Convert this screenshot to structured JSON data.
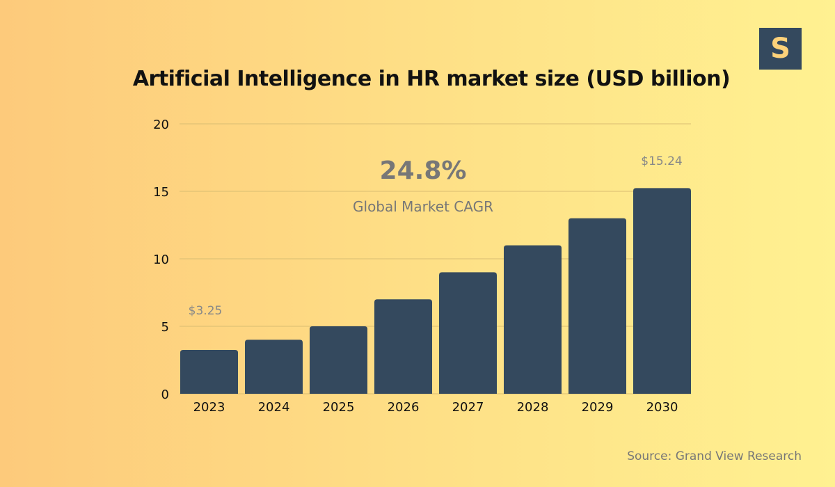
{
  "logo_text": "S",
  "source": "Source: Grand View Research",
  "colors": {
    "bar": "#34495e",
    "grid": "#d9bd72",
    "annotation": "#777777"
  },
  "chart_data": {
    "type": "bar",
    "title": "Artificial Intelligence in HR market size (USD billion)",
    "xlabel": "",
    "ylabel": "",
    "categories": [
      "2023",
      "2024",
      "2025",
      "2026",
      "2027",
      "2028",
      "2029",
      "2030"
    ],
    "values": [
      3.25,
      4.0,
      5.0,
      7.0,
      9.0,
      11.0,
      13.0,
      15.24
    ],
    "ylim": [
      0,
      20
    ],
    "yticks": [
      0,
      5,
      10,
      15,
      20
    ],
    "grid": true,
    "annotations": {
      "first_value": "$3.25",
      "last_value": "$15.24",
      "cagr": "24.8%",
      "cagr_label": "Global Market CAGR"
    }
  }
}
